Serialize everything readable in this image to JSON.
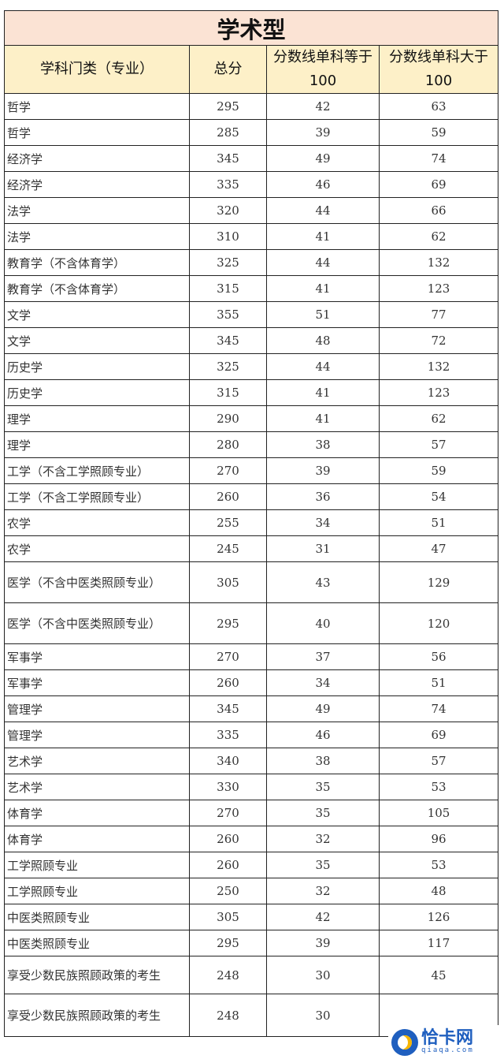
{
  "title": "学术型",
  "headers": [
    "学科门类（专业）",
    "总分",
    "分数线单科等于100",
    "分数线单科大于100"
  ],
  "rows": [
    [
      "哲学",
      "295",
      "42",
      "63"
    ],
    [
      "哲学",
      "285",
      "39",
      "59"
    ],
    [
      "经济学",
      "345",
      "49",
      "74"
    ],
    [
      "经济学",
      "335",
      "46",
      "69"
    ],
    [
      "法学",
      "320",
      "44",
      "66"
    ],
    [
      "法学",
      "310",
      "41",
      "62"
    ],
    [
      "教育学（不含体育学）",
      "325",
      "44",
      "132"
    ],
    [
      "教育学（不含体育学）",
      "315",
      "41",
      "123"
    ],
    [
      "文学",
      "355",
      "51",
      "77"
    ],
    [
      "文学",
      "345",
      "48",
      "72"
    ],
    [
      "历史学",
      "325",
      "44",
      "132"
    ],
    [
      "历史学",
      "315",
      "41",
      "123"
    ],
    [
      "理学",
      "290",
      "41",
      "62"
    ],
    [
      "理学",
      "280",
      "38",
      "57"
    ],
    [
      "工学（不含工学照顾专业）",
      "270",
      "39",
      "59"
    ],
    [
      "工学（不含工学照顾专业）",
      "260",
      "36",
      "54"
    ],
    [
      "农学",
      "255",
      "34",
      "51"
    ],
    [
      "农学",
      "245",
      "31",
      "47"
    ],
    [
      "医学（不含中医类照顾专业）",
      "305",
      "43",
      "129"
    ],
    [
      "医学（不含中医类照顾专业）",
      "295",
      "40",
      "120"
    ],
    [
      "军事学",
      "270",
      "37",
      "56"
    ],
    [
      "军事学",
      "260",
      "34",
      "51"
    ],
    [
      "管理学",
      "345",
      "49",
      "74"
    ],
    [
      "管理学",
      "335",
      "46",
      "69"
    ],
    [
      "艺术学",
      "340",
      "38",
      "57"
    ],
    [
      "艺术学",
      "330",
      "35",
      "53"
    ],
    [
      "体育学",
      "270",
      "35",
      "105"
    ],
    [
      "体育学",
      "260",
      "32",
      "96"
    ],
    [
      "工学照顾专业",
      "260",
      "35",
      "53"
    ],
    [
      "工学照顾专业",
      "250",
      "32",
      "48"
    ],
    [
      "中医类照顾专业",
      "305",
      "42",
      "126"
    ],
    [
      "中医类照顾专业",
      "295",
      "39",
      "117"
    ],
    [
      "享受少数民族照顾政策的考生",
      "248",
      "30",
      "45"
    ],
    [
      "享受少数民族照顾政策的考生",
      "248",
      "30",
      ""
    ]
  ],
  "watermark": {
    "name": "恰卡网",
    "domain": "qiaqa.com",
    "color": "#1f5fbf"
  }
}
